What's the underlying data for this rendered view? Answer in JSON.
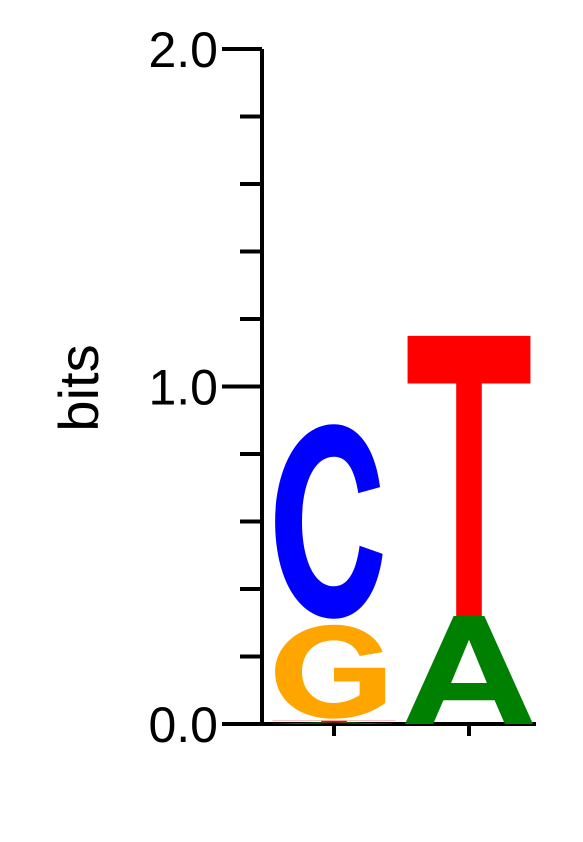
{
  "chart_data": {
    "type": "sequence-logo",
    "ylabel": "bits",
    "ylim": [
      0,
      2.0
    ],
    "y_tick_labels": [
      "0.0",
      "1.0",
      "2.0"
    ],
    "y_minor_ticks": [
      0.2,
      0.4,
      0.6,
      0.8,
      1.2,
      1.4,
      1.6,
      1.8
    ],
    "positions": [
      {
        "stack": [
          {
            "letter": "A",
            "bits": 0.005
          },
          {
            "letter": "T",
            "bits": 0.005
          },
          {
            "letter": "G",
            "bits": 0.29
          },
          {
            "letter": "C",
            "bits": 0.6
          }
        ]
      },
      {
        "stack": [
          {
            "letter": "A",
            "bits": 0.32
          },
          {
            "letter": "T",
            "bits": 0.83
          }
        ]
      }
    ],
    "colors": {
      "A": "#008000",
      "C": "#0000ff",
      "G": "#ffa500",
      "T": "#ff0000"
    }
  }
}
